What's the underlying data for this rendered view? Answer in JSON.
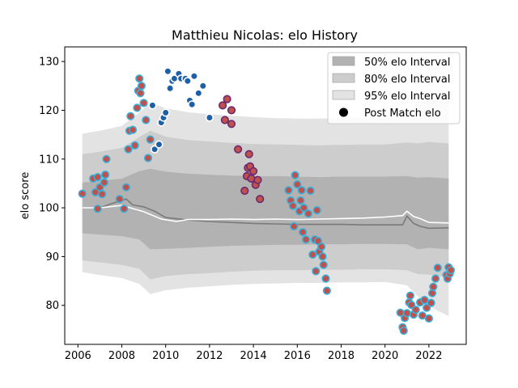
{
  "chart_data": {
    "type": "scatter",
    "title": "Matthieu Nicolas: elo History",
    "xlabel": "",
    "ylabel": "elo score",
    "xlim": [
      2005.4,
      2023.7
    ],
    "ylim": [
      72,
      133
    ],
    "x_ticks": [
      2006,
      2008,
      2010,
      2012,
      2014,
      2016,
      2018,
      2020,
      2022
    ],
    "y_ticks": [
      80,
      90,
      100,
      110,
      120,
      130
    ],
    "legend": {
      "position": "top-right",
      "entries": [
        "50% elo Interval",
        "80% elo Interval",
        "95% elo Interval",
        "Post Match elo"
      ]
    },
    "colors": {
      "band95": "#e3e3e3",
      "band80": "#cdcdcd",
      "band50": "#b2b2b2",
      "median_line": "#7a7a7a",
      "mean_line": "#ffffff",
      "marker_fill_red": "#c0504d",
      "marker_edge_cyan": "#3ab0d8",
      "marker_dark_blue": "#1f5fa6",
      "marker_edge_purple": "#6a2a6e"
    },
    "series": [
      {
        "name": "50% elo Interval",
        "x": [
          2006.2,
          2007,
          2008,
          2008.8,
          2009.3,
          2010,
          2011,
          2012,
          2013,
          2014,
          2015,
          2016,
          2017,
          2018,
          2019,
          2020,
          2021,
          2021.5,
          2022,
          2022.9
        ],
        "lower": [
          94.8,
          94.5,
          94.2,
          93.5,
          91.5,
          91.6,
          91.8,
          92,
          92.2,
          92.3,
          92.4,
          92.4,
          92.5,
          92.5,
          92.6,
          92.6,
          92.5,
          91.5,
          91.8,
          91.5
        ],
        "upper": [
          105.2,
          105.5,
          106,
          107.5,
          108,
          107.4,
          107,
          106.8,
          106.6,
          106.5,
          106.5,
          106.4,
          106.3,
          106.4,
          106.4,
          106.4,
          106.5,
          106.2,
          106.3,
          106
        ]
      },
      {
        "name": "80% elo Interval",
        "x": [
          2006.2,
          2007,
          2008,
          2008.8,
          2009.3,
          2010,
          2011,
          2012,
          2013,
          2014,
          2015,
          2016,
          2017,
          2018,
          2019,
          2020,
          2021,
          2021.5,
          2022,
          2022.9
        ],
        "lower": [
          89.2,
          88.8,
          88.3,
          87.5,
          85.3,
          86,
          86.4,
          86.6,
          86.9,
          87.1,
          87.2,
          87.2,
          87.3,
          87.3,
          87.4,
          87.4,
          87.2,
          86.4,
          86.3,
          85.8
        ],
        "upper": [
          111,
          111.5,
          112.3,
          114.5,
          115.8,
          114.6,
          113.9,
          113.6,
          113.3,
          113.1,
          113,
          112.9,
          112.8,
          112.9,
          113,
          113,
          113.4,
          113.2,
          113.5,
          113.2
        ]
      },
      {
        "name": "95% elo Interval",
        "x": [
          2006.2,
          2007,
          2008,
          2008.8,
          2009.3,
          2010,
          2011,
          2012,
          2013,
          2014,
          2015,
          2016,
          2017,
          2018,
          2019,
          2020,
          2021,
          2021.5,
          2022,
          2022.9
        ],
        "lower": [
          86.8,
          86.2,
          85.6,
          84.4,
          82.3,
          83.1,
          83.6,
          83.9,
          84.2,
          84.4,
          84.5,
          84.6,
          84.6,
          84.7,
          84.7,
          84.8,
          84.1,
          81.8,
          79.8,
          77.8
        ],
        "upper": [
          115.2,
          115.8,
          116.8,
          119.5,
          121.6,
          120.4,
          119.6,
          119.2,
          118.9,
          118.6,
          118.4,
          118.3,
          118.3,
          118.4,
          118.5,
          118.6,
          119.8,
          120.5,
          122.7,
          124.3
        ]
      },
      {
        "name": "median",
        "x": [
          2006.2,
          2007,
          2007.5,
          2008.2,
          2008.5,
          2009,
          2009.5,
          2010,
          2011,
          2012,
          2013,
          2014,
          2015,
          2016,
          2017,
          2018,
          2019,
          2020,
          2020.8,
          2021,
          2021.3,
          2021.6,
          2022,
          2022.9
        ],
        "values": [
          100,
          100,
          100.8,
          101.8,
          100.6,
          100.2,
          99.3,
          98,
          97.5,
          97.2,
          97,
          96.8,
          96.7,
          96.6,
          96.6,
          96.6,
          96.5,
          96.5,
          96.5,
          98.3,
          96.8,
          96.2,
          95.8,
          95.9
        ]
      },
      {
        "name": "mean",
        "x": [
          2006.2,
          2007,
          2008,
          2009,
          2009.8,
          2010.5,
          2011,
          2012,
          2013,
          2014,
          2015,
          2016,
          2017,
          2018,
          2019,
          2020,
          2020.8,
          2021,
          2021.3,
          2021.6,
          2022,
          2022.9
        ],
        "values": [
          100,
          100,
          100.5,
          99.2,
          97.7,
          97.2,
          97.6,
          97.6,
          97.7,
          97.6,
          97.7,
          97.6,
          97.7,
          97.8,
          97.9,
          98.1,
          98.4,
          99.3,
          98.2,
          97.8,
          97,
          96.9
        ]
      },
      {
        "name": "Post Match elo",
        "x": [
          2006.2,
          2006.7,
          2006.8,
          2006.9,
          2006.9,
          2007,
          2007.1,
          2007.2,
          2007.25,
          2007.3,
          2007.9,
          2008.1,
          2008.2,
          2008.3,
          2008.35,
          2008.4,
          2008.5,
          2008.6,
          2008.7,
          2008.75,
          2008.8,
          2008.85,
          2008.9,
          2009,
          2009.1,
          2009.2,
          2009.3,
          2009.4,
          2009.5,
          2009.7,
          2009.8,
          2009.9,
          2010,
          2010.1,
          2010.2,
          2010.3,
          2010.4,
          2010.6,
          2010.7,
          2010.9,
          2011,
          2011.1,
          2011.2,
          2011.3,
          2011.5,
          2011.7,
          2012,
          2012.6,
          2012.7,
          2012.8,
          2013,
          2013,
          2013.3,
          2013.6,
          2013.7,
          2013.75,
          2013.8,
          2013.85,
          2013.9,
          2014,
          2014.1,
          2014.2,
          2014.3,
          2015.6,
          2015.7,
          2015.8,
          2015.85,
          2015.9,
          2016,
          2016.1,
          2016.15,
          2016.2,
          2016.25,
          2016.3,
          2016.4,
          2016.5,
          2016.6,
          2016.7,
          2016.8,
          2016.85,
          2016.9,
          2016.95,
          2017,
          2017.1,
          2017.15,
          2017.2,
          2017.3,
          2017.35,
          2020.7,
          2020.8,
          2020.85,
          2020.9,
          2021,
          2021.1,
          2021.15,
          2021.2,
          2021.3,
          2021.4,
          2021.6,
          2021.7,
          2021.8,
          2021.9,
          2022,
          2022.1,
          2022.15,
          2022.2,
          2022.3,
          2022.4,
          2022.8,
          2022.85,
          2022.9,
          2022.95,
          2023
        ],
        "values": [
          102.9,
          106,
          103.2,
          106.3,
          99.8,
          104.2,
          102.8,
          105.2,
          106.8,
          110,
          101.8,
          99.8,
          104.2,
          112,
          115.8,
          118.8,
          116,
          112.8,
          120.5,
          124,
          126.5,
          123.5,
          125,
          121.5,
          118,
          110.2,
          114,
          121,
          112,
          113,
          117.5,
          118.5,
          119.5,
          128,
          124.5,
          126,
          126.5,
          127.5,
          126.5,
          126.5,
          126,
          122,
          121.2,
          127,
          123.5,
          125,
          118.5,
          121,
          118,
          122.3,
          117.2,
          120,
          112,
          103.5,
          106.5,
          108.2,
          111,
          108.5,
          106,
          107.5,
          104.7,
          105.7,
          101.8,
          103.6,
          101.5,
          100.4,
          96.2,
          106.7,
          104.8,
          99.3,
          101.5,
          103.6,
          95,
          100,
          93.5,
          98.8,
          103.5,
          90.4,
          93.5,
          87,
          99.5,
          93.2,
          91,
          92,
          90,
          88.3,
          85.5,
          83,
          78.5,
          75.5,
          74.8,
          77.4,
          78.4,
          80.6,
          82,
          80.1,
          78.1,
          79.1,
          80.6,
          77.9,
          81.1,
          79.5,
          77.3,
          80.5,
          82.5,
          83.8,
          85.5,
          87.7,
          86.2,
          85.5,
          87.8,
          86.5,
          87.2
        ]
      }
    ]
  }
}
